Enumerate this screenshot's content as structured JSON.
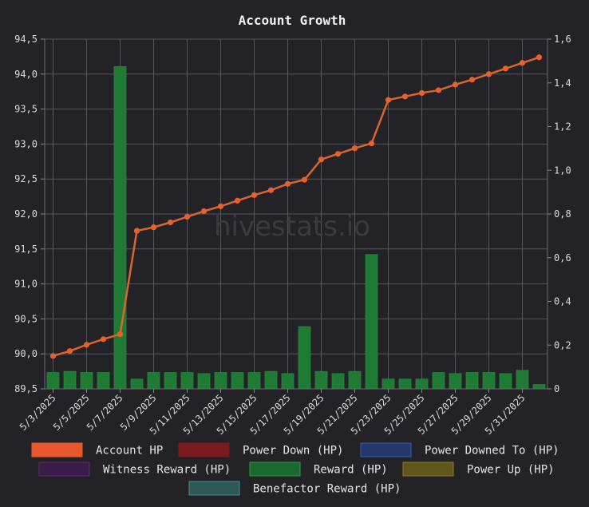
{
  "chart_data": {
    "type": "bar",
    "title": "Account Growth",
    "watermark": "hivestats.io",
    "categories": [
      "5/3/2025",
      "5/4/2025",
      "5/5/2025",
      "5/6/2025",
      "5/7/2025",
      "5/8/2025",
      "5/9/2025",
      "5/10/2025",
      "5/11/2025",
      "5/12/2025",
      "5/13/2025",
      "5/14/2025",
      "5/15/2025",
      "5/16/2025",
      "5/17/2025",
      "5/18/2025",
      "5/19/2025",
      "5/20/2025",
      "5/21/2025",
      "5/22/2025",
      "5/23/2025",
      "5/24/2025",
      "5/25/2025",
      "5/26/2025",
      "5/27/2025",
      "5/28/2025",
      "5/29/2025",
      "5/30/2025",
      "5/31/2025",
      "6/1/2025"
    ],
    "x_tick_labels": [
      "5/3/2025",
      "5/5/2025",
      "5/7/2025",
      "5/9/2025",
      "5/11/2025",
      "5/13/2025",
      "5/15/2025",
      "5/17/2025",
      "5/19/2025",
      "5/21/2025",
      "5/23/2025",
      "5/25/2025",
      "5/27/2025",
      "5/29/2025",
      "5/31/2025"
    ],
    "y_left": {
      "min": 89.5,
      "max": 94.5,
      "ticks": [
        "94,5",
        "94,0",
        "93,5",
        "93,0",
        "92,5",
        "92,0",
        "91,5",
        "91,0",
        "90,5",
        "90,0",
        "89,5"
      ]
    },
    "y_right": {
      "min": 0,
      "max": 1.6,
      "ticks": [
        "1,6",
        "1,4",
        "1,2",
        "1,0",
        "0,8",
        "0,6",
        "0,4",
        "0,2",
        "0"
      ]
    },
    "series": [
      {
        "name": "Account HP",
        "kind": "line",
        "axis": "left",
        "color": "#e8612c",
        "values": [
          89.97,
          90.04,
          90.13,
          90.21,
          90.28,
          91.76,
          91.81,
          91.88,
          91.96,
          92.04,
          92.11,
          92.19,
          92.27,
          92.34,
          92.43,
          92.49,
          92.78,
          92.86,
          92.94,
          93.01,
          93.63,
          93.68,
          93.73,
          93.77,
          93.85,
          93.92,
          94.0,
          94.08,
          94.16,
          94.24
        ]
      },
      {
        "name": "Reward (HP)",
        "kind": "bar",
        "axis": "right",
        "color": "#1f7a34",
        "values": [
          0.075,
          0.08,
          0.075,
          0.075,
          1.475,
          0.045,
          0.075,
          0.075,
          0.075,
          0.07,
          0.075,
          0.075,
          0.075,
          0.08,
          0.07,
          0.285,
          0.08,
          0.07,
          0.08,
          0.615,
          0.045,
          0.045,
          0.045,
          0.075,
          0.07,
          0.075,
          0.075,
          0.07,
          0.085,
          0.02
        ]
      }
    ],
    "legend": [
      {
        "label": "Account HP",
        "fill": "#e8582c",
        "stroke": "#e8582c"
      },
      {
        "label": "Power Down (HP)",
        "fill": "#7a1a1f",
        "stroke": "#7a1a1f"
      },
      {
        "label": "Power Downed To (HP)",
        "fill": "#24386b",
        "stroke": "#3b5aa8"
      },
      {
        "label": "Witness Reward (HP)",
        "fill": "#3b1c4a",
        "stroke": "#5a2e6e"
      },
      {
        "label": "Reward (HP)",
        "fill": "#1a6a2e",
        "stroke": "#2a9a46"
      },
      {
        "label": "Power Up (HP)",
        "fill": "#5e561a",
        "stroke": "#8a7d24"
      },
      {
        "label": "Benefactor Reward (HP)",
        "fill": "#2e5a56",
        "stroke": "#4e8a84"
      }
    ],
    "legend_placement": "bottom",
    "grid": true
  }
}
